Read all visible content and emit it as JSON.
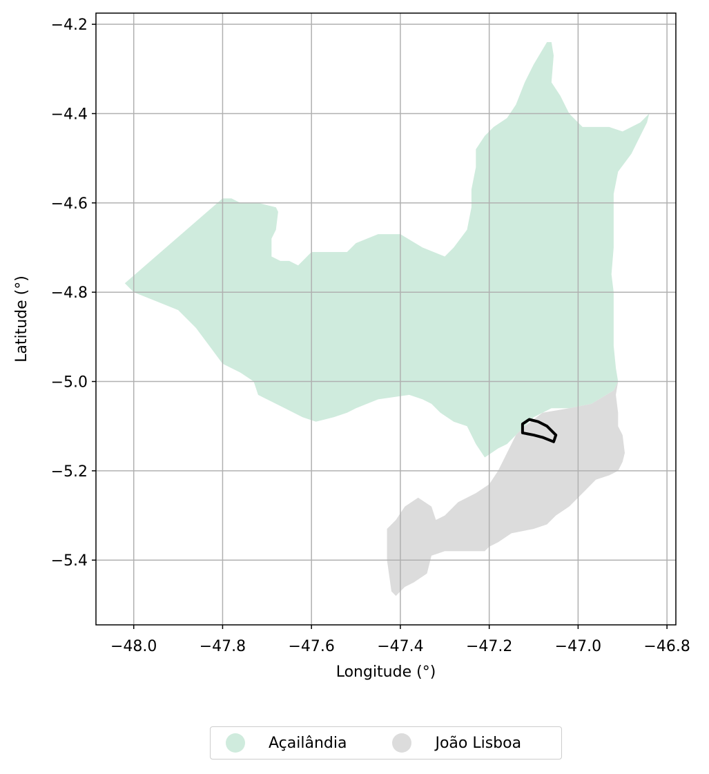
{
  "chart_data": {
    "type": "map",
    "title": "",
    "xlabel": "Longitude (°)",
    "ylabel": "Latitude (°)",
    "xlim": [
      -48.085,
      -46.78
    ],
    "ylim": [
      -5.545,
      -4.175
    ],
    "xticks": [
      -48.0,
      -47.8,
      -47.6,
      -47.4,
      -47.2,
      -47.0,
      -46.8
    ],
    "xtick_labels": [
      "−48.0",
      "−47.8",
      "−47.6",
      "−47.4",
      "−47.2",
      "−47.0",
      "−46.8"
    ],
    "yticks": [
      -4.2,
      -4.4,
      -4.6,
      -4.8,
      -5.0,
      -5.2,
      -5.4
    ],
    "ytick_labels": [
      "−4.2",
      "−4.4",
      "−4.6",
      "−4.8",
      "−5.0",
      "−5.2",
      "−5.4"
    ],
    "grid": true,
    "legend_position": "bottom-center",
    "regions": [
      {
        "name": "Açailândia",
        "color": "#cfebdd",
        "boundary": [
          [
            -48.02,
            -4.78
          ],
          [
            -47.8,
            -4.59
          ],
          [
            -47.78,
            -4.59
          ],
          [
            -47.76,
            -4.6
          ],
          [
            -47.72,
            -4.6
          ],
          [
            -47.68,
            -4.61
          ],
          [
            -47.675,
            -4.62
          ],
          [
            -47.68,
            -4.66
          ],
          [
            -47.69,
            -4.68
          ],
          [
            -47.69,
            -4.72
          ],
          [
            -47.67,
            -4.73
          ],
          [
            -47.65,
            -4.73
          ],
          [
            -47.63,
            -4.74
          ],
          [
            -47.6,
            -4.71
          ],
          [
            -47.56,
            -4.71
          ],
          [
            -47.52,
            -4.71
          ],
          [
            -47.5,
            -4.69
          ],
          [
            -47.45,
            -4.67
          ],
          [
            -47.4,
            -4.67
          ],
          [
            -47.35,
            -4.7
          ],
          [
            -47.3,
            -4.72
          ],
          [
            -47.28,
            -4.7
          ],
          [
            -47.25,
            -4.66
          ],
          [
            -47.24,
            -4.61
          ],
          [
            -47.24,
            -4.57
          ],
          [
            -47.23,
            -4.52
          ],
          [
            -47.23,
            -4.48
          ],
          [
            -47.21,
            -4.45
          ],
          [
            -47.19,
            -4.43
          ],
          [
            -47.16,
            -4.41
          ],
          [
            -47.14,
            -4.38
          ],
          [
            -47.12,
            -4.33
          ],
          [
            -47.1,
            -4.29
          ],
          [
            -47.07,
            -4.24
          ],
          [
            -47.06,
            -4.24
          ],
          [
            -47.055,
            -4.27
          ],
          [
            -47.06,
            -4.33
          ],
          [
            -47.04,
            -4.36
          ],
          [
            -47.02,
            -4.4
          ],
          [
            -46.99,
            -4.43
          ],
          [
            -46.96,
            -4.43
          ],
          [
            -46.93,
            -4.43
          ],
          [
            -46.9,
            -4.44
          ],
          [
            -46.86,
            -4.42
          ],
          [
            -46.84,
            -4.4
          ],
          [
            -46.845,
            -4.42
          ],
          [
            -46.86,
            -4.45
          ],
          [
            -46.88,
            -4.49
          ],
          [
            -46.91,
            -4.53
          ],
          [
            -46.92,
            -4.58
          ],
          [
            -46.92,
            -4.63
          ],
          [
            -46.92,
            -4.7
          ],
          [
            -46.925,
            -4.76
          ],
          [
            -46.92,
            -4.8
          ],
          [
            -46.92,
            -4.86
          ],
          [
            -46.92,
            -4.92
          ],
          [
            -46.915,
            -4.97
          ],
          [
            -46.91,
            -5.0
          ],
          [
            -46.92,
            -5.02
          ],
          [
            -46.97,
            -5.05
          ],
          [
            -47.02,
            -5.06
          ],
          [
            -47.06,
            -5.06
          ],
          [
            -47.1,
            -5.08
          ],
          [
            -47.13,
            -5.11
          ],
          [
            -47.16,
            -5.14
          ],
          [
            -47.18,
            -5.15
          ],
          [
            -47.21,
            -5.17
          ],
          [
            -47.23,
            -5.14
          ],
          [
            -47.25,
            -5.1
          ],
          [
            -47.28,
            -5.09
          ],
          [
            -47.31,
            -5.07
          ],
          [
            -47.33,
            -5.05
          ],
          [
            -47.35,
            -5.04
          ],
          [
            -47.38,
            -5.03
          ],
          [
            -47.45,
            -5.04
          ],
          [
            -47.5,
            -5.06
          ],
          [
            -47.52,
            -5.07
          ],
          [
            -47.55,
            -5.08
          ],
          [
            -47.59,
            -5.09
          ],
          [
            -47.62,
            -5.08
          ],
          [
            -47.66,
            -5.06
          ],
          [
            -47.7,
            -5.04
          ],
          [
            -47.72,
            -5.03
          ],
          [
            -47.73,
            -5.0
          ],
          [
            -47.76,
            -4.98
          ],
          [
            -47.8,
            -4.96
          ],
          [
            -47.83,
            -4.92
          ],
          [
            -47.86,
            -4.88
          ],
          [
            -47.9,
            -4.84
          ],
          [
            -47.95,
            -4.82
          ],
          [
            -48.0,
            -4.8
          ],
          [
            -48.02,
            -4.78
          ]
        ]
      },
      {
        "name": "João Lisboa",
        "color": "#dcdcdc",
        "boundary": [
          [
            -46.91,
            -5.0
          ],
          [
            -46.915,
            -5.03
          ],
          [
            -46.91,
            -5.07
          ],
          [
            -46.91,
            -5.1
          ],
          [
            -46.9,
            -5.12
          ],
          [
            -46.895,
            -5.16
          ],
          [
            -46.9,
            -5.18
          ],
          [
            -46.91,
            -5.2
          ],
          [
            -46.93,
            -5.21
          ],
          [
            -46.96,
            -5.22
          ],
          [
            -46.98,
            -5.24
          ],
          [
            -47.0,
            -5.26
          ],
          [
            -47.02,
            -5.28
          ],
          [
            -47.05,
            -5.3
          ],
          [
            -47.07,
            -5.32
          ],
          [
            -47.1,
            -5.33
          ],
          [
            -47.15,
            -5.34
          ],
          [
            -47.18,
            -5.36
          ],
          [
            -47.2,
            -5.37
          ],
          [
            -47.21,
            -5.38
          ],
          [
            -47.25,
            -5.38
          ],
          [
            -47.26,
            -5.38
          ],
          [
            -47.3,
            -5.38
          ],
          [
            -47.33,
            -5.39
          ],
          [
            -47.34,
            -5.43
          ],
          [
            -47.37,
            -5.45
          ],
          [
            -47.39,
            -5.46
          ],
          [
            -47.41,
            -5.48
          ],
          [
            -47.42,
            -5.47
          ],
          [
            -47.43,
            -5.4
          ],
          [
            -47.43,
            -5.33
          ],
          [
            -47.41,
            -5.31
          ],
          [
            -47.39,
            -5.28
          ],
          [
            -47.36,
            -5.26
          ],
          [
            -47.33,
            -5.28
          ],
          [
            -47.32,
            -5.31
          ],
          [
            -47.3,
            -5.3
          ],
          [
            -47.27,
            -5.27
          ],
          [
            -47.23,
            -5.25
          ],
          [
            -47.2,
            -5.23
          ],
          [
            -47.18,
            -5.2
          ],
          [
            -47.16,
            -5.16
          ],
          [
            -47.14,
            -5.12
          ],
          [
            -47.12,
            -5.1
          ],
          [
            -47.08,
            -5.07
          ],
          [
            -47.02,
            -5.06
          ],
          [
            -46.97,
            -5.05
          ],
          [
            -46.92,
            -5.02
          ],
          [
            -46.91,
            -5.0
          ]
        ]
      }
    ],
    "outlined_feature": {
      "color": "#000000",
      "boundary": [
        [
          -47.125,
          -5.095
        ],
        [
          -47.11,
          -5.085
        ],
        [
          -47.09,
          -5.09
        ],
        [
          -47.07,
          -5.1
        ],
        [
          -47.05,
          -5.12
        ],
        [
          -47.055,
          -5.135
        ],
        [
          -47.08,
          -5.125
        ],
        [
          -47.1,
          -5.12
        ],
        [
          -47.125,
          -5.115
        ],
        [
          -47.125,
          -5.095
        ]
      ]
    }
  },
  "legend": {
    "items": [
      {
        "label": "Açailândia",
        "color": "#cfebdd"
      },
      {
        "label": "João Lisboa",
        "color": "#dcdcdc"
      }
    ]
  }
}
